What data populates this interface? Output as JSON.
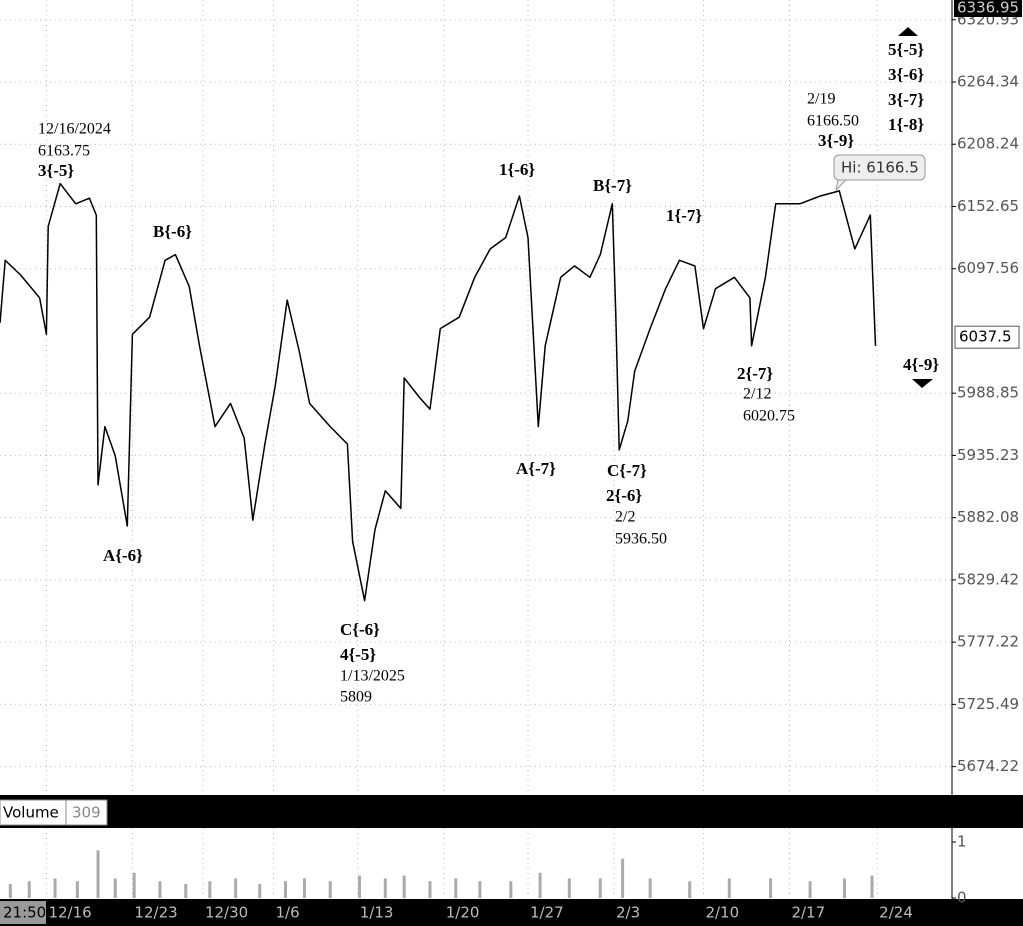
{
  "chart_data": [
    {
      "type": "line",
      "log_y": true,
      "grid": true,
      "color": "#000000",
      "xlim": [
        0,
        55.35
      ],
      "ylim": [
        5651,
        6339
      ],
      "xticks": [
        {
          "value": 2.7,
          "label": "12/16"
        },
        {
          "value": 7.7,
          "label": "12/23"
        },
        {
          "value": 11.8,
          "label": "12/30"
        },
        {
          "value": 15.9,
          "label": "1/6"
        },
        {
          "value": 20.8,
          "label": "1/13"
        },
        {
          "value": 25.8,
          "label": "1/20"
        },
        {
          "value": 30.7,
          "label": "1/27"
        },
        {
          "value": 35.7,
          "label": "2/3"
        },
        {
          "value": 40.9,
          "label": "2/10"
        },
        {
          "value": 45.9,
          "label": "2/17"
        },
        {
          "value": 51,
          "label": "2/24"
        }
      ],
      "yticks": [
        6320.93,
        6264.34,
        6208.24,
        6152.65,
        6097.56,
        5988.85,
        5935.23,
        5882.08,
        5829.42,
        5777.22,
        5725.49,
        5674.22
      ],
      "scale_top": 6336.95,
      "last_price": 6037.5,
      "x": [
        0,
        0.3,
        1.2,
        2.3,
        2.7,
        2.8,
        3.5,
        4.4,
        5.2,
        5.6,
        5.7,
        6.1,
        6.7,
        7.4,
        7.7,
        8.7,
        9.6,
        10.2,
        11.0,
        11.6,
        12.5,
        13.4,
        14.2,
        14.7,
        15.4,
        16.0,
        16.7,
        17.4,
        18.0,
        19.2,
        20.2,
        20.5,
        21.2,
        21.8,
        22.4,
        23.3,
        23.5,
        24.4,
        25.0,
        25.6,
        26.7,
        27.6,
        28.5,
        29.4,
        30.2,
        30.7,
        31.3,
        31.7,
        32.6,
        33.4,
        34.3,
        34.9,
        35.6,
        35.8,
        36.0,
        36.5,
        36.9,
        37.8,
        38.7,
        39.5,
        40.4,
        40.9,
        41.6,
        42.7,
        43.6,
        43.7,
        44.5,
        45.1,
        46.5,
        47.7,
        48.8,
        49.7,
        50.6,
        50.9
      ],
      "values": [
        6050,
        6105,
        6092,
        6072,
        6040,
        6135,
        6173,
        6155,
        6160,
        6145,
        5910,
        5960,
        5935,
        5875,
        6040,
        6055,
        6105,
        6110,
        6082,
        6030,
        5960,
        5980,
        5950,
        5880,
        5945,
        5995,
        6070,
        6025,
        5980,
        5960,
        5945,
        5862,
        5812,
        5872,
        5905,
        5890,
        6002,
        5985,
        5975,
        6045,
        6055,
        6090,
        6115,
        6125,
        6162,
        6125,
        5960,
        6030,
        6090,
        6100,
        6090,
        6110,
        6155,
        6060,
        5940,
        5965,
        6008,
        6045,
        6080,
        6105,
        6100,
        6045,
        6080,
        6090,
        6072,
        6030,
        6090,
        6155,
        6155,
        6162,
        6166.5,
        6115,
        6145,
        6030
      ]
    },
    {
      "type": "bar",
      "title": "Volume",
      "last_value": 309,
      "color": "#aaaaaa",
      "ylim": [
        0,
        1.25
      ],
      "yticks": [
        0,
        1
      ],
      "x": [
        0.6,
        1.7,
        3.2,
        4.5,
        5.7,
        6.7,
        7.8,
        9.3,
        10.8,
        12.2,
        13.7,
        15.1,
        16.6,
        17.7,
        19.2,
        20.9,
        22.4,
        23.5,
        25.0,
        26.5,
        27.9,
        29.7,
        31.4,
        33.1,
        34.9,
        36.2,
        37.8,
        40.1,
        42.4,
        44.8,
        47.1,
        49.1,
        50.7
      ],
      "values": [
        0.25,
        0.3,
        0.35,
        0.3,
        0.85,
        0.35,
        0.45,
        0.3,
        0.25,
        0.3,
        0.35,
        0.25,
        0.3,
        0.35,
        0.3,
        0.4,
        0.35,
        0.4,
        0.3,
        0.35,
        0.3,
        0.3,
        0.45,
        0.35,
        0.35,
        0.7,
        0.35,
        0.3,
        0.35,
        0.35,
        0.3,
        0.35,
        0.4
      ]
    }
  ],
  "session_time": "21:50",
  "annotations": [
    "12/16/2024",
    "6163.75",
    "3{-5}",
    "B{-6}",
    "A{-6}",
    "C{-6}",
    "4{-5}",
    "1/13/2025",
    "5809",
    "1{-6}",
    "B{-7}",
    "A{-7}",
    "C{-7}",
    "2{-6}",
    "2/2",
    "5936.50",
    "1{-7}",
    "2{-7}",
    "2/12",
    "6020.75",
    "2/19",
    "6166.50",
    "3{-9}",
    "5{-5}",
    "3{-6}",
    "3{-7}",
    "1{-8}",
    "4{-9}",
    "Hi: 6166.5"
  ]
}
